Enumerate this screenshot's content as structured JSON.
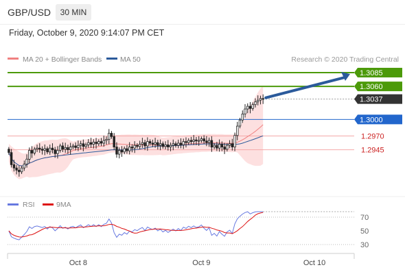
{
  "header": {
    "symbol": "GBP/USD",
    "timeframe": "30 MIN",
    "datetime": "Friday, October 9, 2020 9:14:07 PM CET"
  },
  "chart_data": {
    "type": "candlestick",
    "legend": [
      {
        "label": "MA 20 + Bollinger Bands",
        "color": "#f08080"
      },
      {
        "label": "MA 50",
        "color": "#2b5a9b"
      }
    ],
    "credit": "Research © 2020 Trading Central",
    "price_ylim": [
      1.2865,
      1.3095
    ],
    "levels": [
      {
        "value": 1.3085,
        "label": "1.3085",
        "color": "#4c9a0a",
        "style": "target"
      },
      {
        "value": 1.306,
        "label": "1.3060",
        "color": "#4c9a0a",
        "style": "target"
      },
      {
        "value": 1.3037,
        "label": "1.3037",
        "color": "#333333",
        "style": "last"
      },
      {
        "value": 1.3,
        "label": "1.3000",
        "color": "#2266cc",
        "style": "pivot"
      },
      {
        "value": 1.297,
        "label": "1.2970",
        "color": "#cc2222",
        "style": "support"
      },
      {
        "value": 1.2945,
        "label": "1.2945",
        "color": "#cc2222",
        "style": "support"
      }
    ],
    "close": [
      1.294,
      1.2918,
      1.2912,
      1.2908,
      1.2905,
      1.2912,
      1.2919,
      1.2928,
      1.2944,
      1.2939,
      1.2946,
      1.2948,
      1.2946,
      1.2944,
      1.2947,
      1.2941,
      1.2948,
      1.2945,
      1.2938,
      1.2944,
      1.2952,
      1.2946,
      1.2949,
      1.2945,
      1.295,
      1.2952,
      1.2949,
      1.2953,
      1.2956,
      1.2951,
      1.2954,
      1.2958,
      1.2955,
      1.2959,
      1.2956,
      1.296,
      1.2957,
      1.2962,
      1.2964,
      1.2975,
      1.2969,
      1.295,
      1.2937,
      1.2944,
      1.2941,
      1.2947,
      1.2943,
      1.295,
      1.2948,
      1.2953,
      1.2951,
      1.2955,
      1.2958,
      1.2952,
      1.296,
      1.2957,
      1.2955,
      1.2958,
      1.2953,
      1.2956,
      1.2951,
      1.2954,
      1.295,
      1.2953,
      1.2956,
      1.2953,
      1.2957,
      1.2954,
      1.296,
      1.2958,
      1.2962,
      1.296,
      1.2963,
      1.2961,
      1.2962,
      1.2965,
      1.2961,
      1.2958,
      1.2962,
      1.295,
      1.2953,
      1.2948,
      1.2955,
      1.295,
      1.2946,
      1.2953,
      1.2956,
      1.295,
      1.2971,
      1.2988,
      1.2999,
      1.301,
      1.3019,
      1.3024,
      1.302,
      1.3027,
      1.3032,
      1.3035,
      1.3038,
      1.3037
    ],
    "rsi": {
      "label": "RSI",
      "color": "#6678e0",
      "ma_label": "9MA",
      "ma_color": "#dd1111",
      "ylim": [
        20,
        80
      ],
      "ticks": [
        70,
        50,
        30
      ],
      "ref_lines": [
        70,
        30
      ]
    },
    "x_labels": [
      {
        "label": "Oct 8",
        "index": 27
      },
      {
        "label": "Oct 9",
        "index": 75
      },
      {
        "label": "Oct 10",
        "index": 119
      }
    ],
    "x_count": 135
  }
}
